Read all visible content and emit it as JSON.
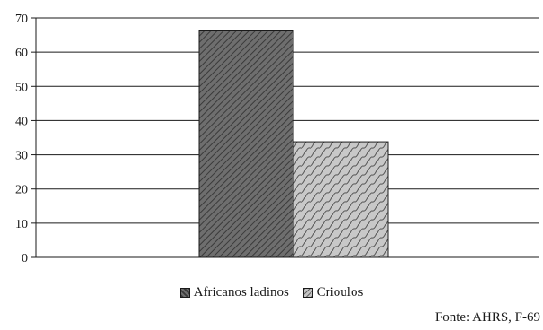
{
  "chart_data": {
    "type": "bar",
    "title": "",
    "xlabel": "",
    "ylabel": "",
    "ylim": [
      0,
      70
    ],
    "yticks": [
      0,
      10,
      20,
      30,
      40,
      50,
      60,
      70
    ],
    "grid": true,
    "legend_position": "bottom",
    "series": [
      {
        "name": "Africanos ladinos",
        "value": 66.2,
        "color": "#6e6e6e",
        "pattern": "dense-diagonal-hatch"
      },
      {
        "name": "Crioulos",
        "value": 33.8,
        "color": "#c4c4c4",
        "pattern": "wave-hatch"
      }
    ]
  },
  "source": "Fonte: AHRS, F-69"
}
